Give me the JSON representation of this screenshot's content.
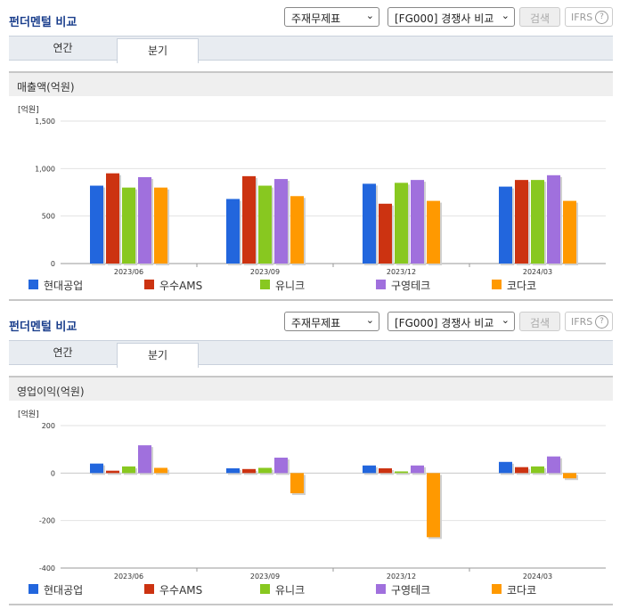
{
  "panels": [
    {
      "title": "펀더멘털 비교",
      "select1": "주재무제표",
      "select2": "[FG000] 경쟁사 비교",
      "search_label": "검색",
      "ifrs_label": "IFRS",
      "tabs": [
        {
          "label": "연간"
        },
        {
          "label": "분기"
        }
      ],
      "active_tab": 1,
      "subtitle": "매출액(억원)",
      "unit": "[억원]"
    },
    {
      "title": "펀더멘털 비교",
      "select1": "주재무제표",
      "select2": "[FG000] 경쟁사 비교",
      "search_label": "검색",
      "ifrs_label": "IFRS",
      "tabs": [
        {
          "label": "연간"
        },
        {
          "label": "분기"
        }
      ],
      "active_tab": 1,
      "subtitle": "영업이익(억원)",
      "unit": "[억원]"
    }
  ],
  "legend": [
    {
      "name": "현대공업",
      "color": "#2266dd"
    },
    {
      "name": "우수AMS",
      "color": "#cc3311"
    },
    {
      "name": "유니크",
      "color": "#88c820"
    },
    {
      "name": "구영테크",
      "color": "#a070dd"
    },
    {
      "name": "코다코",
      "color": "#ff9900"
    }
  ],
  "chart_data": [
    {
      "type": "bar",
      "title": "매출액(억원)",
      "ylabel": "[억원]",
      "categories": [
        "2023/06",
        "2023/09",
        "2023/12",
        "2024/03"
      ],
      "ylim": [
        0,
        1500
      ],
      "yticks": [
        0,
        500,
        1000,
        1500
      ],
      "ytick_labels": [
        "0",
        "500",
        "1,000",
        "1,500"
      ],
      "grid": true,
      "legend_position": "bottom",
      "series": [
        {
          "name": "현대공업",
          "values": [
            820,
            680,
            840,
            810
          ]
        },
        {
          "name": "우수AMS",
          "values": [
            950,
            920,
            630,
            880
          ]
        },
        {
          "name": "유니크",
          "values": [
            800,
            820,
            850,
            880
          ]
        },
        {
          "name": "구영테크",
          "values": [
            910,
            890,
            880,
            930
          ]
        },
        {
          "name": "코다코",
          "values": [
            800,
            710,
            660,
            660
          ]
        }
      ]
    },
    {
      "type": "bar",
      "title": "영업이익(억원)",
      "ylabel": "[억원]",
      "categories": [
        "2023/06",
        "2023/09",
        "2023/12",
        "2024/03"
      ],
      "ylim": [
        -400,
        200
      ],
      "yticks": [
        -400,
        -200,
        0,
        200
      ],
      "ytick_labels": [
        "-400",
        "-200",
        "0",
        "200"
      ],
      "grid": true,
      "legend_position": "bottom",
      "series": [
        {
          "name": "현대공업",
          "values": [
            40,
            20,
            32,
            47
          ]
        },
        {
          "name": "우수AMS",
          "values": [
            10,
            17,
            20,
            25
          ]
        },
        {
          "name": "유니크",
          "values": [
            28,
            22,
            7,
            28
          ]
        },
        {
          "name": "구영테크",
          "values": [
            117,
            65,
            32,
            70
          ]
        },
        {
          "name": "코다코",
          "values": [
            22,
            -85,
            -270,
            -22
          ]
        }
      ]
    }
  ]
}
